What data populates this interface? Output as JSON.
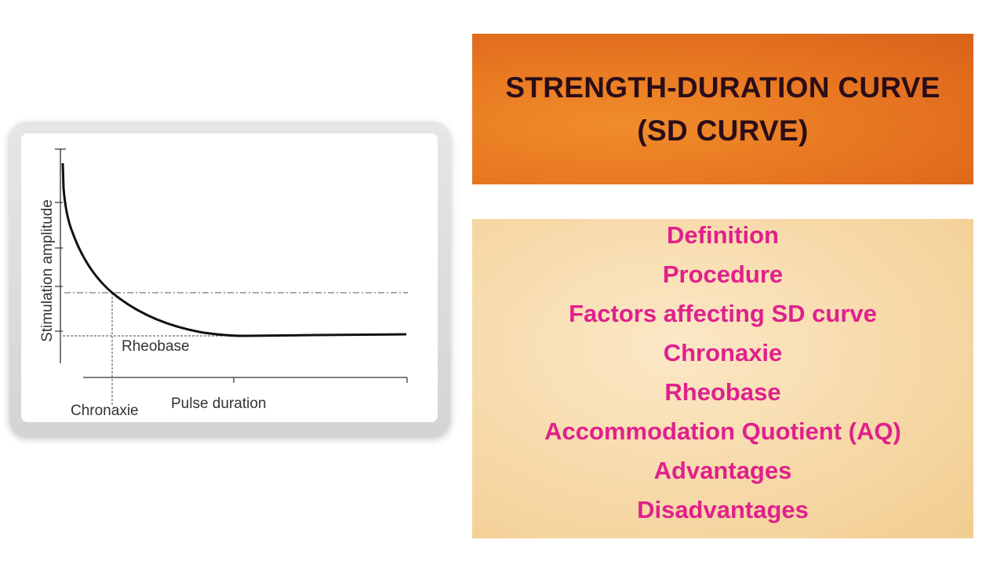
{
  "graph": {
    "y_axis_label": "Stimulation amplitude",
    "x_axis_label": "Pulse duration",
    "rheobase_label": "Rheobase",
    "chronaxie_label": "Chronaxie"
  },
  "title": {
    "line1": "STRENGTH-DURATION CURVE",
    "line2": "(SD CURVE)"
  },
  "topics": [
    "Definition",
    "Procedure",
    "Factors affecting SD curve",
    "Chronaxie",
    "Rheobase",
    "Accommodation Quotient (AQ)",
    "Advantages",
    "Disadvantages"
  ],
  "colors": {
    "title_bg": "#e97922",
    "title_text": "#2b0d18",
    "topics_bg": "#f7d9a8",
    "topics_text": "#e0208c"
  }
}
